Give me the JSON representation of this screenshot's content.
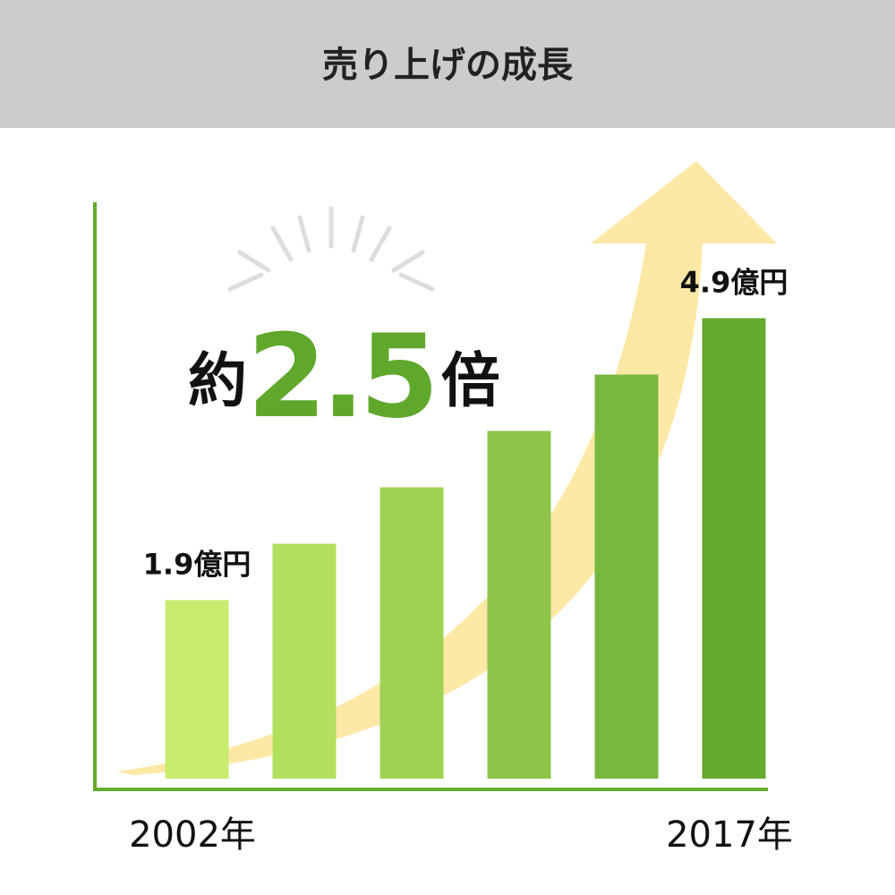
{
  "chart_data": {
    "type": "bar",
    "title": "売り上げの成長",
    "annotation": {
      "prefix": "約",
      "value": "2.5",
      "suffix": "倍"
    },
    "categories": [
      "2002年",
      null,
      null,
      null,
      null,
      "2017年"
    ],
    "values": [
      1.9,
      2.5,
      3.1,
      3.7,
      4.3,
      4.9
    ],
    "value_labels": [
      "1.9億円",
      null,
      null,
      null,
      null,
      "4.9億円"
    ],
    "colors": [
      "#c8ec6e",
      "#b2df5d",
      "#a0d256",
      "#8cc54a",
      "#78b83e",
      "#66ab30"
    ]
  }
}
